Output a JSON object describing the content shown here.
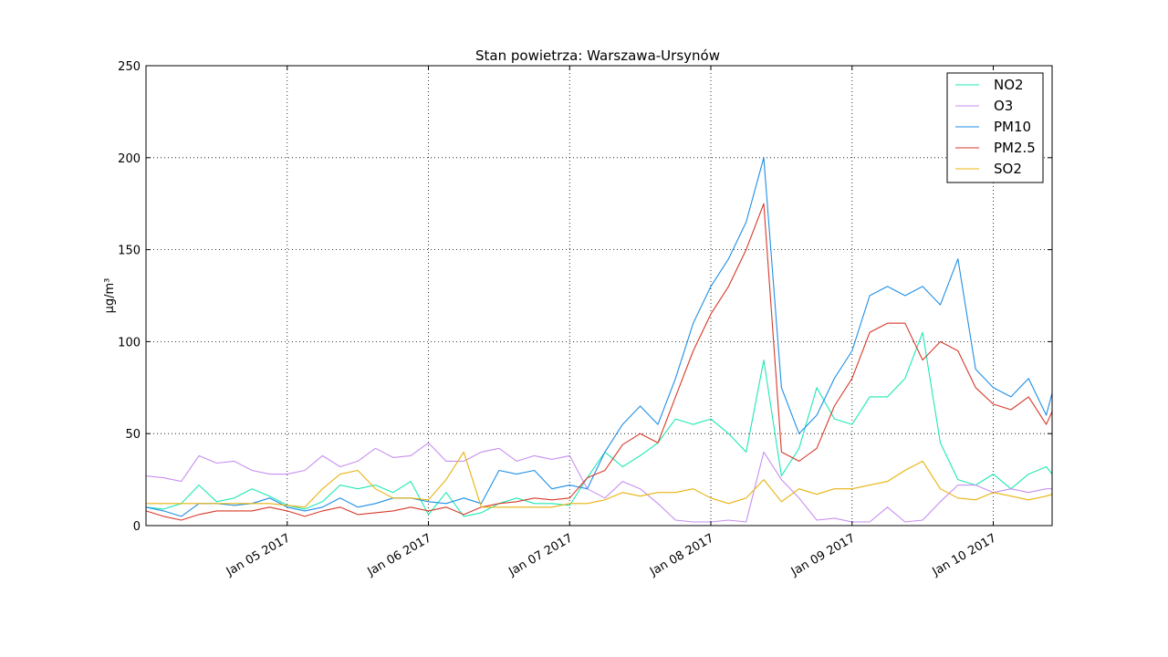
{
  "chart_data": {
    "type": "line",
    "title": "Stan powietrza: Warszawa-Ursynów",
    "ylabel": "µg/m³",
    "xlabel": "",
    "xlim": [
      "2017-01-04T00:00",
      "2017-01-10T10:00"
    ],
    "ylim": [
      0,
      250
    ],
    "yticks": [
      0,
      50,
      100,
      150,
      200,
      250
    ],
    "xticks": [
      {
        "t": "2017-01-05T00:00",
        "label": "Jan 05 2017"
      },
      {
        "t": "2017-01-06T00:00",
        "label": "Jan 06 2017"
      },
      {
        "t": "2017-01-07T00:00",
        "label": "Jan 07 2017"
      },
      {
        "t": "2017-01-08T00:00",
        "label": "Jan 08 2017"
      },
      {
        "t": "2017-01-09T00:00",
        "label": "Jan 09 2017"
      },
      {
        "t": "2017-01-10T00:00",
        "label": "Jan 10 2017"
      }
    ],
    "grid": true,
    "legend_position": "top-right",
    "x": [
      "2017-01-04T00:00",
      "2017-01-04T03:00",
      "2017-01-04T06:00",
      "2017-01-04T09:00",
      "2017-01-04T12:00",
      "2017-01-04T15:00",
      "2017-01-04T18:00",
      "2017-01-04T21:00",
      "2017-01-05T00:00",
      "2017-01-05T03:00",
      "2017-01-05T06:00",
      "2017-01-05T09:00",
      "2017-01-05T12:00",
      "2017-01-05T15:00",
      "2017-01-05T18:00",
      "2017-01-05T21:00",
      "2017-01-06T00:00",
      "2017-01-06T03:00",
      "2017-01-06T06:00",
      "2017-01-06T09:00",
      "2017-01-06T12:00",
      "2017-01-06T15:00",
      "2017-01-06T18:00",
      "2017-01-06T21:00",
      "2017-01-07T00:00",
      "2017-01-07T03:00",
      "2017-01-07T06:00",
      "2017-01-07T09:00",
      "2017-01-07T12:00",
      "2017-01-07T15:00",
      "2017-01-07T18:00",
      "2017-01-07T21:00",
      "2017-01-08T00:00",
      "2017-01-08T03:00",
      "2017-01-08T06:00",
      "2017-01-08T09:00",
      "2017-01-08T12:00",
      "2017-01-08T15:00",
      "2017-01-08T18:00",
      "2017-01-08T21:00",
      "2017-01-09T00:00",
      "2017-01-09T03:00",
      "2017-01-09T06:00",
      "2017-01-09T09:00",
      "2017-01-09T12:00",
      "2017-01-09T15:00",
      "2017-01-09T18:00",
      "2017-01-09T21:00",
      "2017-01-10T00:00",
      "2017-01-10T03:00",
      "2017-01-10T06:00",
      "2017-01-10T09:00",
      "2017-01-10T10:00"
    ],
    "series": [
      {
        "name": "NO2",
        "color": "#1ee8b4",
        "values": [
          10,
          9,
          12,
          22,
          13,
          15,
          20,
          16,
          11,
          9,
          13,
          22,
          20,
          22,
          18,
          24,
          6,
          18,
          5,
          7,
          12,
          15,
          12,
          12,
          11,
          26,
          40,
          32,
          38,
          45,
          58,
          55,
          58,
          50,
          40,
          90,
          27,
          42,
          75,
          58,
          55,
          70,
          70,
          80,
          105,
          45,
          25,
          22,
          28,
          20,
          28,
          32,
          28
        ]
      },
      {
        "name": "O3",
        "color": "#c78ff0",
        "values": [
          27,
          26,
          24,
          38,
          34,
          35,
          30,
          28,
          28,
          30,
          38,
          32,
          35,
          42,
          37,
          38,
          45,
          35,
          35,
          40,
          42,
          35,
          38,
          36,
          38,
          20,
          15,
          24,
          20,
          12,
          3,
          2,
          2,
          3,
          2,
          40,
          25,
          15,
          3,
          4,
          2,
          2,
          10,
          2,
          3,
          13,
          22,
          22,
          18,
          20,
          18,
          20,
          20
        ]
      },
      {
        "name": "PM10",
        "color": "#1f8fe6",
        "values": [
          10,
          8,
          5,
          12,
          12,
          11,
          12,
          15,
          10,
          8,
          10,
          15,
          10,
          12,
          15,
          15,
          13,
          12,
          15,
          12,
          30,
          28,
          30,
          20,
          22,
          20,
          40,
          55,
          65,
          55,
          80,
          110,
          130,
          145,
          165,
          200,
          75,
          50,
          60,
          80,
          95,
          125,
          130,
          125,
          130,
          120,
          145,
          85,
          75,
          70,
          80,
          60,
          72
        ]
      },
      {
        "name": "PM2.5",
        "color": "#d63a2a",
        "values": [
          8,
          5,
          3,
          6,
          8,
          8,
          8,
          10,
          8,
          5,
          8,
          10,
          6,
          7,
          8,
          10,
          8,
          10,
          6,
          10,
          12,
          13,
          15,
          14,
          15,
          26,
          30,
          44,
          50,
          45,
          70,
          95,
          115,
          130,
          150,
          175,
          40,
          35,
          42,
          65,
          80,
          105,
          110,
          110,
          90,
          100,
          95,
          75,
          66,
          63,
          70,
          55,
          62
        ]
      },
      {
        "name": "SO2",
        "color": "#e8b30f",
        "values": [
          12,
          12,
          12,
          12,
          12,
          12,
          12,
          12,
          11,
          10,
          20,
          28,
          30,
          20,
          15,
          15,
          14,
          25,
          40,
          10,
          10,
          10,
          10,
          10,
          12,
          12,
          14,
          18,
          16,
          18,
          18,
          20,
          15,
          12,
          15,
          25,
          13,
          20,
          17,
          20,
          20,
          22,
          24,
          30,
          35,
          20,
          15,
          14,
          18,
          16,
          14,
          16,
          17
        ]
      }
    ]
  }
}
